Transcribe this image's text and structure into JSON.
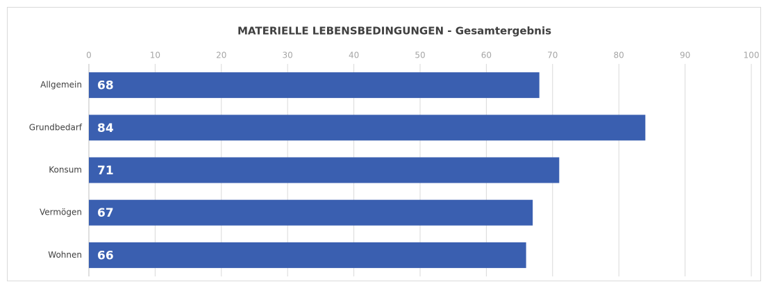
{
  "chart_data": {
    "type": "hbar",
    "title": "MATERIELLE LEBENSBEDINGUNGEN - Gesamtergebnis",
    "categories": [
      "Allgemein",
      "Grundbedarf",
      "Konsum",
      "Vermögen",
      "Wohnen"
    ],
    "values": [
      68,
      84,
      71,
      67,
      66
    ],
    "color": "#3a5fb0",
    "xlim": [
      0,
      100
    ],
    "xticks": [
      0,
      10,
      20,
      30,
      40,
      50,
      60,
      70,
      80,
      90,
      100
    ],
    "grid": true
  }
}
